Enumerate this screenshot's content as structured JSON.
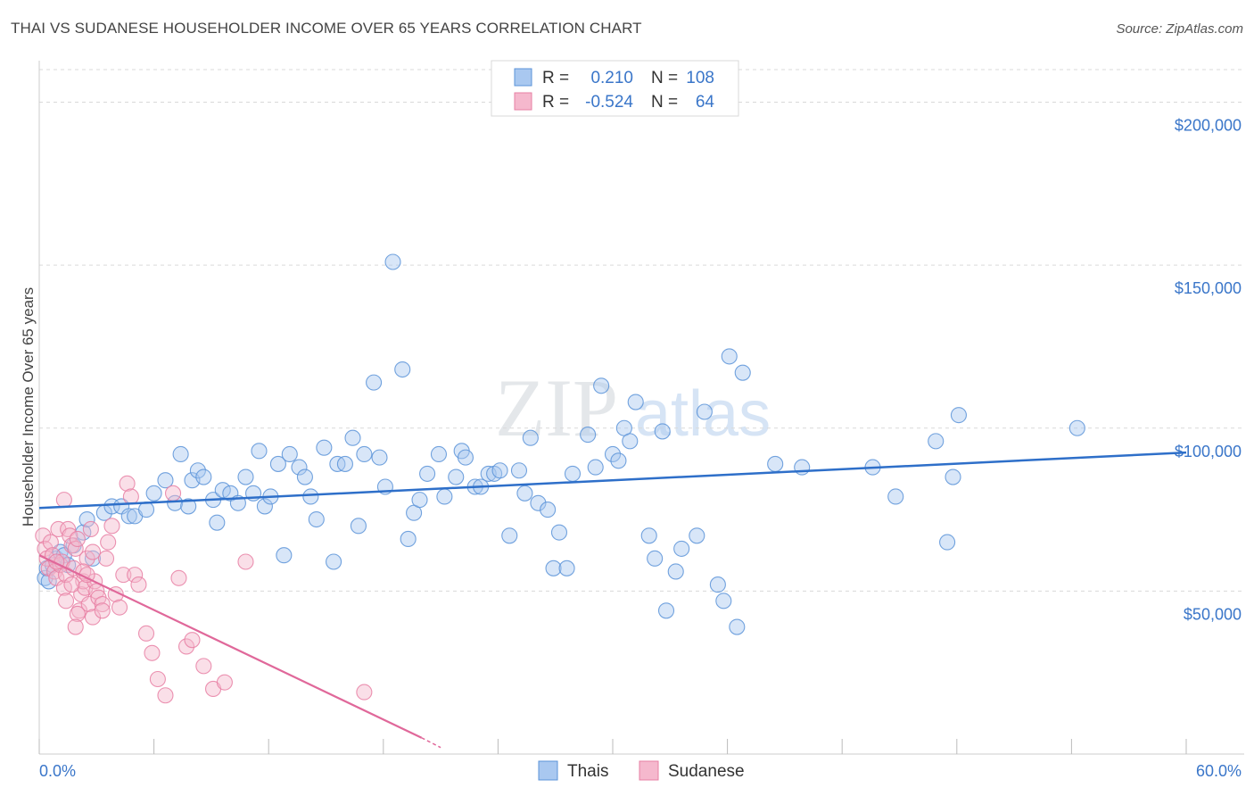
{
  "header": {
    "title": "THAI VS SUDANESE HOUSEHOLDER INCOME OVER 65 YEARS CORRELATION CHART",
    "source": "Source: ZipAtlas.com"
  },
  "watermark": {
    "zip": "ZIP",
    "atlas": "atlas"
  },
  "colors": {
    "thai": "#5b93d8",
    "thai_fill": "#a9c8f0",
    "thai_line": "#2e6fc9",
    "sudanese": "#e77fa3",
    "sudanese_fill": "#f5b8cd",
    "sudanese_line": "#e0689a",
    "label_blue": "#3a76c9",
    "grid": "#d9d9d9"
  },
  "legend": {
    "rows": [
      {
        "r_label": "R =",
        "r_value": "0.210",
        "n_label": "N =",
        "n_value": "108"
      },
      {
        "r_label": "R =",
        "r_value": "-0.524",
        "n_label": "N =",
        "n_value": "64"
      }
    ]
  },
  "bottom_legend": {
    "thai": "Thais",
    "sudanese": "Sudanese"
  },
  "chart_data": {
    "type": "scatter",
    "title": "THAI VS SUDANESE HOUSEHOLDER INCOME OVER 65 YEARS CORRELATION CHART",
    "xlabel": "",
    "ylabel": "Householder Income Over 65 years",
    "xlim": [
      0,
      60
    ],
    "ylim": [
      0,
      210000
    ],
    "x_tick_labels": [
      {
        "value": 0,
        "label": "0.0%"
      },
      {
        "value": 60,
        "label": "60.0%"
      }
    ],
    "y_ticks": [
      {
        "value": 50000,
        "label": "$50,000"
      },
      {
        "value": 100000,
        "label": "$100,000"
      },
      {
        "value": 150000,
        "label": "$150,000"
      },
      {
        "value": 200000,
        "label": "$200,000"
      }
    ],
    "series": [
      {
        "name": "Thais",
        "r": 0.21,
        "n": 108,
        "trend": {
          "x": [
            0,
            60
          ],
          "y": [
            75500,
            92500
          ]
        },
        "points": [
          [
            0.3,
            54000
          ],
          [
            0.4,
            57000
          ],
          [
            0.5,
            53000
          ],
          [
            0.7,
            58000
          ],
          [
            0.9,
            60000
          ],
          [
            1.1,
            62000
          ],
          [
            1.3,
            61000
          ],
          [
            1.5,
            58000
          ],
          [
            1.8,
            64000
          ],
          [
            2.3,
            68000
          ],
          [
            2.8,
            60000
          ],
          [
            2.5,
            72000
          ],
          [
            3.4,
            74000
          ],
          [
            3.8,
            76000
          ],
          [
            4.3,
            76000
          ],
          [
            4.7,
            73000
          ],
          [
            5.0,
            73000
          ],
          [
            5.6,
            75000
          ],
          [
            6.0,
            80000
          ],
          [
            6.6,
            84000
          ],
          [
            7.1,
            77000
          ],
          [
            7.4,
            92000
          ],
          [
            7.8,
            76000
          ],
          [
            8.0,
            84000
          ],
          [
            8.3,
            87000
          ],
          [
            8.6,
            85000
          ],
          [
            9.1,
            78000
          ],
          [
            9.3,
            71000
          ],
          [
            9.6,
            81000
          ],
          [
            10.0,
            80000
          ],
          [
            10.4,
            77000
          ],
          [
            10.8,
            85000
          ],
          [
            11.2,
            80000
          ],
          [
            11.5,
            93000
          ],
          [
            11.8,
            76000
          ],
          [
            12.1,
            79000
          ],
          [
            12.5,
            89000
          ],
          [
            12.8,
            61000
          ],
          [
            13.1,
            92000
          ],
          [
            13.6,
            88000
          ],
          [
            13.9,
            85000
          ],
          [
            14.2,
            79000
          ],
          [
            14.5,
            72000
          ],
          [
            14.9,
            94000
          ],
          [
            15.4,
            59000
          ],
          [
            15.6,
            89000
          ],
          [
            16.0,
            89000
          ],
          [
            16.4,
            97000
          ],
          [
            16.7,
            70000
          ],
          [
            17.0,
            92000
          ],
          [
            17.5,
            114000
          ],
          [
            17.8,
            91000
          ],
          [
            18.1,
            82000
          ],
          [
            18.5,
            151000
          ],
          [
            19.0,
            118000
          ],
          [
            19.3,
            66000
          ],
          [
            19.6,
            74000
          ],
          [
            19.9,
            78000
          ],
          [
            20.3,
            86000
          ],
          [
            20.9,
            92000
          ],
          [
            21.2,
            79000
          ],
          [
            21.8,
            85000
          ],
          [
            22.1,
            93000
          ],
          [
            22.3,
            91000
          ],
          [
            22.8,
            82000
          ],
          [
            23.1,
            82000
          ],
          [
            23.5,
            86000
          ],
          [
            23.8,
            86000
          ],
          [
            24.1,
            87000
          ],
          [
            24.6,
            67000
          ],
          [
            25.1,
            87000
          ],
          [
            25.4,
            80000
          ],
          [
            25.7,
            97000
          ],
          [
            26.1,
            77000
          ],
          [
            26.6,
            75000
          ],
          [
            26.9,
            57000
          ],
          [
            27.2,
            68000
          ],
          [
            27.6,
            57000
          ],
          [
            27.9,
            86000
          ],
          [
            28.7,
            98000
          ],
          [
            29.1,
            88000
          ],
          [
            29.4,
            113000
          ],
          [
            30.0,
            92000
          ],
          [
            30.3,
            90000
          ],
          [
            30.6,
            100000
          ],
          [
            30.9,
            96000
          ],
          [
            31.2,
            108000
          ],
          [
            31.9,
            67000
          ],
          [
            32.2,
            60000
          ],
          [
            32.6,
            99000
          ],
          [
            32.8,
            44000
          ],
          [
            33.3,
            56000
          ],
          [
            33.6,
            63000
          ],
          [
            34.4,
            67000
          ],
          [
            34.8,
            105000
          ],
          [
            35.5,
            52000
          ],
          [
            35.8,
            47000
          ],
          [
            36.1,
            122000
          ],
          [
            36.5,
            39000
          ],
          [
            36.8,
            117000
          ],
          [
            38.5,
            89000
          ],
          [
            39.9,
            88000
          ],
          [
            43.6,
            88000
          ],
          [
            44.8,
            79000
          ],
          [
            46.9,
            96000
          ],
          [
            47.5,
            65000
          ],
          [
            47.8,
            85000
          ],
          [
            48.1,
            104000
          ],
          [
            54.3,
            100000
          ]
        ]
      },
      {
        "name": "Sudanese",
        "r": -0.524,
        "n": 64,
        "trend": {
          "x": [
            0,
            20
          ],
          "y": [
            61000,
            5000
          ],
          "dashed_to": [
            21,
            2000
          ]
        },
        "points": [
          [
            0.2,
            67000
          ],
          [
            0.3,
            63000
          ],
          [
            0.4,
            60000
          ],
          [
            0.5,
            57000
          ],
          [
            0.6,
            65000
          ],
          [
            0.7,
            61000
          ],
          [
            0.8,
            56000
          ],
          [
            0.9,
            54000
          ],
          [
            1.0,
            69000
          ],
          [
            1.1,
            58000
          ],
          [
            1.2,
            59000
          ],
          [
            1.3,
            51000
          ],
          [
            1.4,
            55000
          ],
          [
            1.5,
            69000
          ],
          [
            1.6,
            67000
          ],
          [
            1.7,
            64000
          ],
          [
            1.8,
            57000
          ],
          [
            1.9,
            63000
          ],
          [
            2.0,
            66000
          ],
          [
            2.1,
            44000
          ],
          [
            2.2,
            49000
          ],
          [
            2.3,
            53000
          ],
          [
            2.4,
            51000
          ],
          [
            2.5,
            60000
          ],
          [
            2.6,
            46000
          ],
          [
            2.7,
            69000
          ],
          [
            2.8,
            62000
          ],
          [
            2.9,
            53000
          ],
          [
            3.0,
            50000
          ],
          [
            0.9,
            59000
          ],
          [
            1.4,
            47000
          ],
          [
            1.7,
            52000
          ],
          [
            2.0,
            43000
          ],
          [
            2.3,
            56000
          ],
          [
            2.5,
            55000
          ],
          [
            2.8,
            42000
          ],
          [
            3.1,
            48000
          ],
          [
            3.3,
            46000
          ],
          [
            3.5,
            60000
          ],
          [
            3.6,
            65000
          ],
          [
            3.8,
            70000
          ],
          [
            4.0,
            49000
          ],
          [
            4.2,
            45000
          ],
          [
            4.4,
            55000
          ],
          [
            4.6,
            83000
          ],
          [
            4.8,
            79000
          ],
          [
            5.0,
            55000
          ],
          [
            5.2,
            52000
          ],
          [
            5.6,
            37000
          ],
          [
            5.9,
            31000
          ],
          [
            6.2,
            23000
          ],
          [
            6.6,
            18000
          ],
          [
            7.0,
            80000
          ],
          [
            7.3,
            54000
          ],
          [
            7.7,
            33000
          ],
          [
            8.0,
            35000
          ],
          [
            8.6,
            27000
          ],
          [
            9.1,
            20000
          ],
          [
            9.7,
            22000
          ],
          [
            10.8,
            59000
          ],
          [
            17.0,
            19000
          ],
          [
            1.3,
            78000
          ],
          [
            1.9,
            39000
          ],
          [
            3.3,
            44000
          ]
        ]
      }
    ]
  }
}
